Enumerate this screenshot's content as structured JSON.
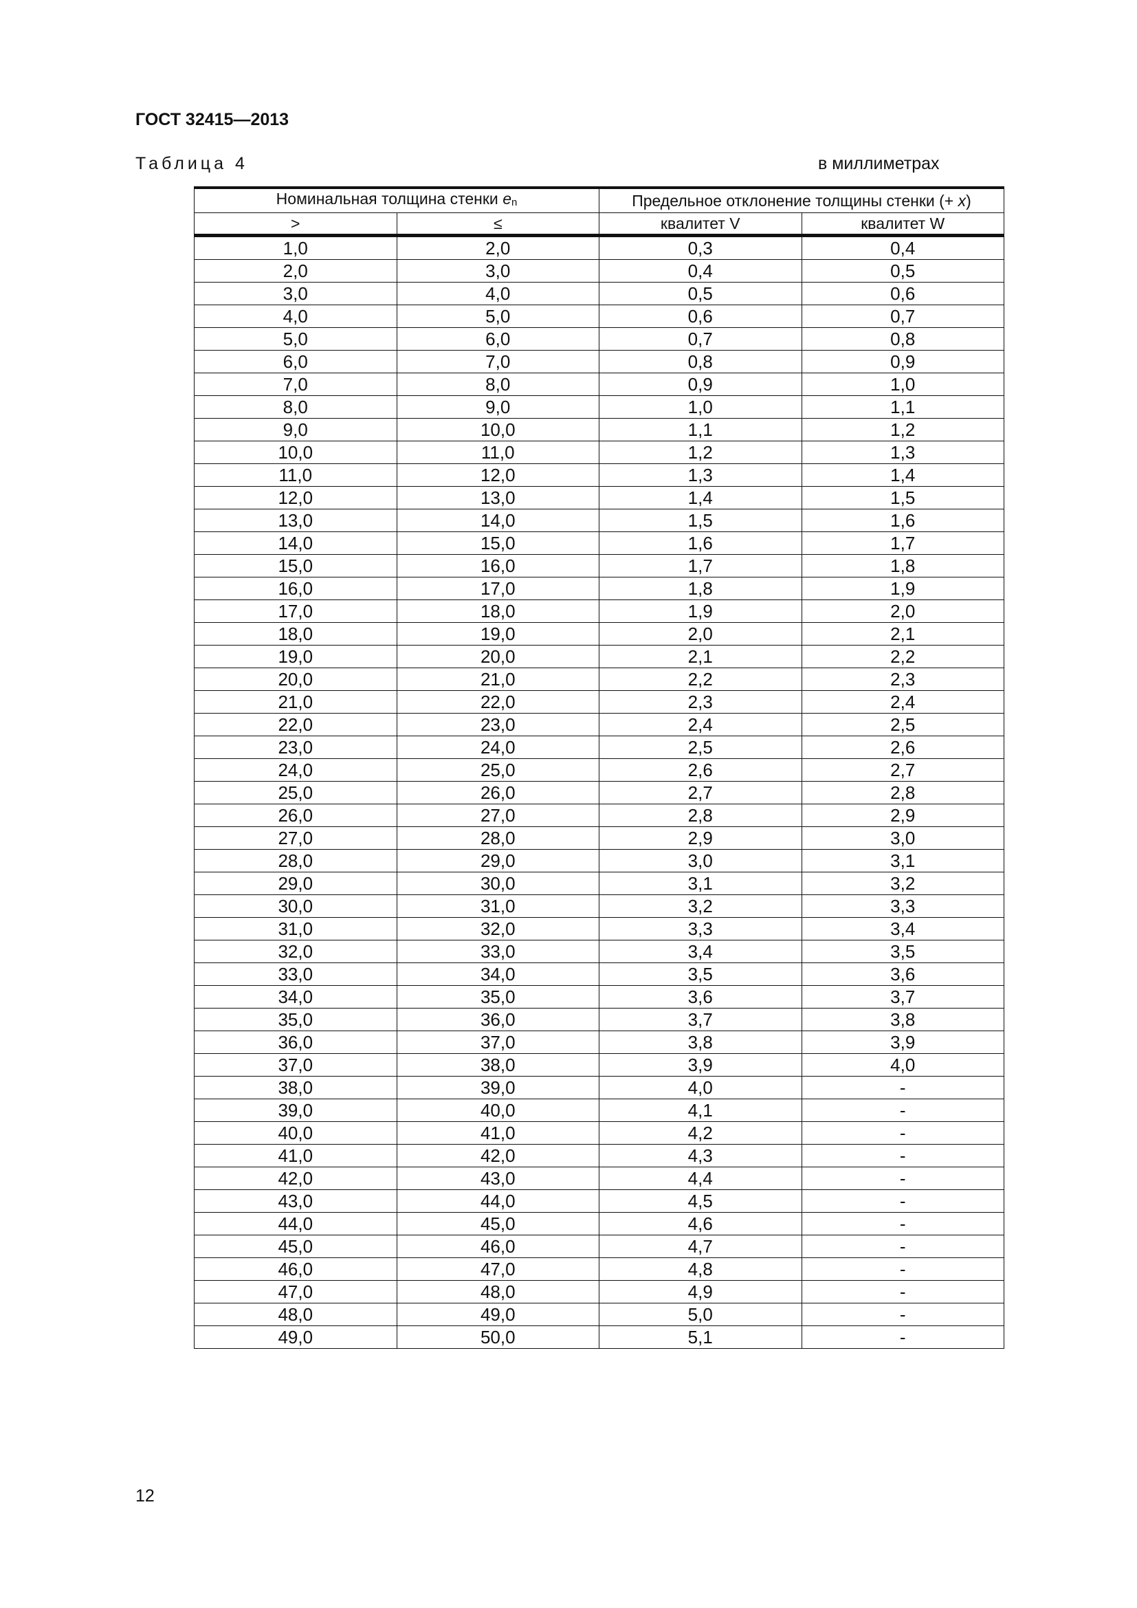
{
  "header": {
    "doc_title": "ГОСТ 32415—2013",
    "table_label": "Таблица 4",
    "units": "в миллиметрах"
  },
  "table": {
    "group_headers": {
      "nominal": "Номинальная толщина стенки ",
      "nominal_symbol": "e",
      "nominal_sub": "n",
      "deviation": "Предельное отклонение толщины стенки (+ ",
      "deviation_symbol": "x",
      "deviation_close": ")"
    },
    "sub_headers": [
      ">",
      "≤",
      "квалитет V",
      "квалитет W"
    ],
    "rows": [
      [
        "1,0",
        "2,0",
        "0,3",
        "0,4"
      ],
      [
        "2,0",
        "3,0",
        "0,4",
        "0,5"
      ],
      [
        "3,0",
        "4,0",
        "0,5",
        "0,6"
      ],
      [
        "4,0",
        "5,0",
        "0,6",
        "0,7"
      ],
      [
        "5,0",
        "6,0",
        "0,7",
        "0,8"
      ],
      [
        "6,0",
        "7,0",
        "0,8",
        "0,9"
      ],
      [
        "7,0",
        "8,0",
        "0,9",
        "1,0"
      ],
      [
        "8,0",
        "9,0",
        "1,0",
        "1,1"
      ],
      [
        "9,0",
        "10,0",
        "1,1",
        "1,2"
      ],
      [
        "10,0",
        "11,0",
        "1,2",
        "1,3"
      ],
      [
        "11,0",
        "12,0",
        "1,3",
        "1,4"
      ],
      [
        "12,0",
        "13,0",
        "1,4",
        "1,5"
      ],
      [
        "13,0",
        "14,0",
        "1,5",
        "1,6"
      ],
      [
        "14,0",
        "15,0",
        "1,6",
        "1,7"
      ],
      [
        "15,0",
        "16,0",
        "1,7",
        "1,8"
      ],
      [
        "16,0",
        "17,0",
        "1,8",
        "1,9"
      ],
      [
        "17,0",
        "18,0",
        "1,9",
        "2,0"
      ],
      [
        "18,0",
        "19,0",
        "2,0",
        "2,1"
      ],
      [
        "19,0",
        "20,0",
        "2,1",
        "2,2"
      ],
      [
        "20,0",
        "21,0",
        "2,2",
        "2,3"
      ],
      [
        "21,0",
        "22,0",
        "2,3",
        "2,4"
      ],
      [
        "22,0",
        "23,0",
        "2,4",
        "2,5"
      ],
      [
        "23,0",
        "24,0",
        "2,5",
        "2,6"
      ],
      [
        "24,0",
        "25,0",
        "2,6",
        "2,7"
      ],
      [
        "25,0",
        "26,0",
        "2,7",
        "2,8"
      ],
      [
        "26,0",
        "27,0",
        "2,8",
        "2,9"
      ],
      [
        "27,0",
        "28,0",
        "2,9",
        "3,0"
      ],
      [
        "28,0",
        "29,0",
        "3,0",
        "3,1"
      ],
      [
        "29,0",
        "30,0",
        "3,1",
        "3,2"
      ],
      [
        "30,0",
        "31,0",
        "3,2",
        "3,3"
      ],
      [
        "31,0",
        "32,0",
        "3,3",
        "3,4"
      ],
      [
        "32,0",
        "33,0",
        "3,4",
        "3,5"
      ],
      [
        "33,0",
        "34,0",
        "3,5",
        "3,6"
      ],
      [
        "34,0",
        "35,0",
        "3,6",
        "3,7"
      ],
      [
        "35,0",
        "36,0",
        "3,7",
        "3,8"
      ],
      [
        "36,0",
        "37,0",
        "3,8",
        "3,9"
      ],
      [
        "37,0",
        "38,0",
        "3,9",
        "4,0"
      ],
      [
        "38,0",
        "39,0",
        "4,0",
        "-"
      ],
      [
        "39,0",
        "40,0",
        "4,1",
        "-"
      ],
      [
        "40,0",
        "41,0",
        "4,2",
        "-"
      ],
      [
        "41,0",
        "42,0",
        "4,3",
        "-"
      ],
      [
        "42,0",
        "43,0",
        "4,4",
        "-"
      ],
      [
        "43,0",
        "44,0",
        "4,5",
        "-"
      ],
      [
        "44,0",
        "45,0",
        "4,6",
        "-"
      ],
      [
        "45,0",
        "46,0",
        "4,7",
        "-"
      ],
      [
        "46,0",
        "47,0",
        "4,8",
        "-"
      ],
      [
        "47,0",
        "48,0",
        "4,9",
        "-"
      ],
      [
        "48,0",
        "49,0",
        "5,0",
        "-"
      ],
      [
        "49,0",
        "50,0",
        "5,1",
        "-"
      ]
    ]
  },
  "footer": {
    "page_number": "12"
  }
}
